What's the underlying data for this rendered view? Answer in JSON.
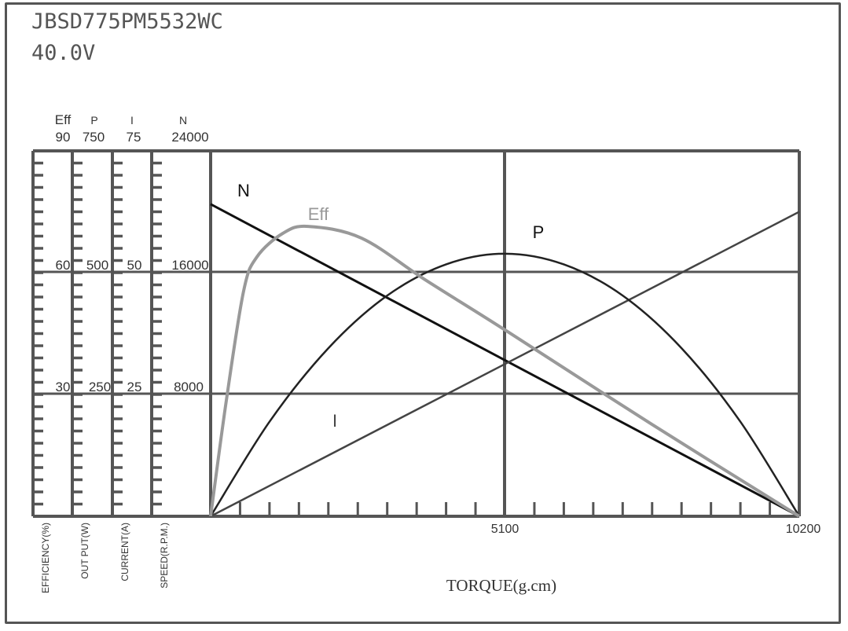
{
  "header": {
    "model": "JBSD775PM5532WC",
    "voltage": "40.0V"
  },
  "chart_data": {
    "type": "line",
    "xlabel": "TORQUE(g.cm)",
    "xlim": [
      0,
      10200
    ],
    "x_tick_labels": [
      "5100",
      "10200"
    ],
    "x_ticks": [
      5100,
      10200
    ],
    "grid": true,
    "axes": [
      {
        "key": "Eff",
        "label": "EFFICIENCY(%)",
        "header": "Eff",
        "max": 90,
        "ticks": [
          "90",
          "60",
          "30"
        ]
      },
      {
        "key": "P",
        "label": "OUT PUT(W)",
        "header": "P",
        "max": 750,
        "ticks": [
          "750",
          "500",
          "250"
        ]
      },
      {
        "key": "I",
        "label": "CURRENT(A)",
        "header": "I",
        "max": 75,
        "ticks": [
          "75",
          "50",
          "25"
        ]
      },
      {
        "key": "N",
        "label": "SPEED(R.P.M.)",
        "header": "N",
        "max": 24000,
        "ticks": [
          "24000",
          "16000",
          "8000"
        ]
      }
    ],
    "series": [
      {
        "name": "N",
        "axis": "N",
        "color": "#111111",
        "x": [
          0,
          10200
        ],
        "y": [
          20500,
          0
        ]
      },
      {
        "name": "I",
        "axis": "I",
        "color": "#444444",
        "x": [
          0,
          10200
        ],
        "y": [
          0,
          62.5
        ]
      },
      {
        "name": "P",
        "axis": "P",
        "color": "#222222",
        "x": [
          0,
          1020,
          2040,
          3060,
          4080,
          5100,
          6120,
          7140,
          8160,
          9180,
          10200
        ],
        "y": [
          0,
          194,
          345,
          453,
          517,
          539,
          517,
          453,
          345,
          194,
          0
        ]
      },
      {
        "name": "Eff",
        "axis": "Eff",
        "color": "#999999",
        "x": [
          0,
          272,
          572,
          803,
          1253,
          1689,
          2615,
          3745,
          5100,
          7650,
          10200
        ],
        "y": [
          0,
          28.5,
          55.5,
          63.9,
          69.7,
          71.4,
          68.5,
          58,
          45.9,
          22.6,
          0
        ]
      }
    ]
  }
}
